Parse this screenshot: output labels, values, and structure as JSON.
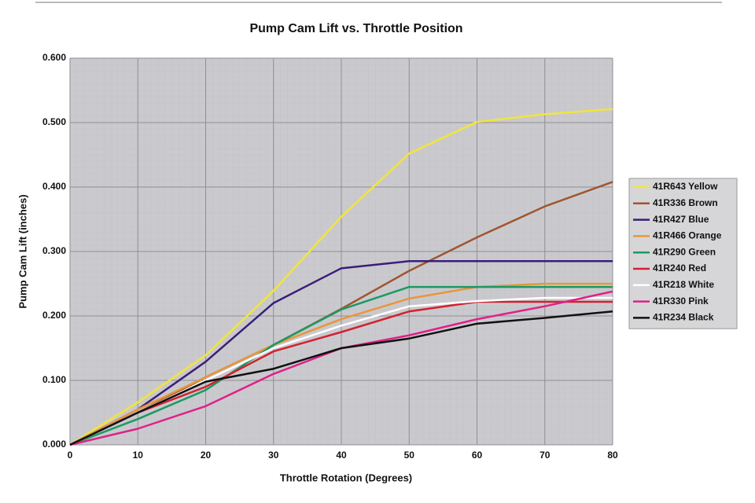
{
  "chart_data": {
    "type": "line",
    "title": "Pump Cam Lift vs. Throttle Position",
    "x_label": "Throttle Rotation (Degrees)",
    "y_label": "Pump Cam Lift (inches)",
    "x": [
      0,
      10,
      20,
      30,
      40,
      50,
      60,
      70,
      80
    ],
    "xlim": [
      0,
      80
    ],
    "xticks": [
      0,
      10,
      20,
      30,
      40,
      50,
      60,
      70,
      80
    ],
    "ylim": [
      0,
      0.6
    ],
    "yticks": [
      {
        "value": 0,
        "label": "0.000"
      },
      {
        "value": 0.1,
        "label": "0.100"
      },
      {
        "value": 0.2,
        "label": "0.200"
      },
      {
        "value": 0.3,
        "label": "0.300"
      },
      {
        "value": 0.4,
        "label": "0.400"
      },
      {
        "value": 0.5,
        "label": "0.500"
      },
      {
        "value": 0.6,
        "label": "0.600"
      }
    ],
    "grid": true,
    "legend": "right",
    "series": [
      {
        "name": "41R643 Yellow",
        "color": "#f2e43c",
        "values": [
          0,
          0.066,
          0.139,
          0.239,
          0.354,
          0.452,
          0.501,
          0.513,
          0.521
        ]
      },
      {
        "name": "41R336 Brown",
        "color": "#a0552e",
        "values": [
          0,
          0.05,
          0.105,
          0.155,
          0.211,
          0.27,
          0.322,
          0.37,
          0.408
        ]
      },
      {
        "name": "41R427 Blue",
        "color": "#3a1e78",
        "values": [
          0,
          0.055,
          0.129,
          0.22,
          0.274,
          0.285,
          0.285,
          0.285,
          0.285
        ]
      },
      {
        "name": "41R466 Orange",
        "color": "#e8963c",
        "values": [
          0,
          0.055,
          0.105,
          0.155,
          0.195,
          0.227,
          0.245,
          0.25,
          0.25
        ]
      },
      {
        "name": "41R290 Green",
        "color": "#1a9a62",
        "values": [
          0,
          0.04,
          0.085,
          0.155,
          0.21,
          0.245,
          0.245,
          0.245,
          0.245
        ]
      },
      {
        "name": "41R240 Red",
        "color": "#d42030",
        "values": [
          0,
          0.05,
          0.09,
          0.145,
          0.175,
          0.207,
          0.222,
          0.222,
          0.222
        ]
      },
      {
        "name": "41R218 White",
        "color": "#ffffff",
        "values": [
          0,
          0.05,
          0.1,
          0.15,
          0.185,
          0.215,
          0.223,
          0.228,
          0.228
        ]
      },
      {
        "name": "41R330 Pink",
        "color": "#e0208a",
        "values": [
          0,
          0.025,
          0.06,
          0.11,
          0.15,
          0.17,
          0.195,
          0.215,
          0.238
        ]
      },
      {
        "name": "41R234 Black",
        "color": "#111111",
        "values": [
          0,
          0.05,
          0.098,
          0.118,
          0.15,
          0.165,
          0.188,
          0.197,
          0.207
        ]
      }
    ]
  }
}
